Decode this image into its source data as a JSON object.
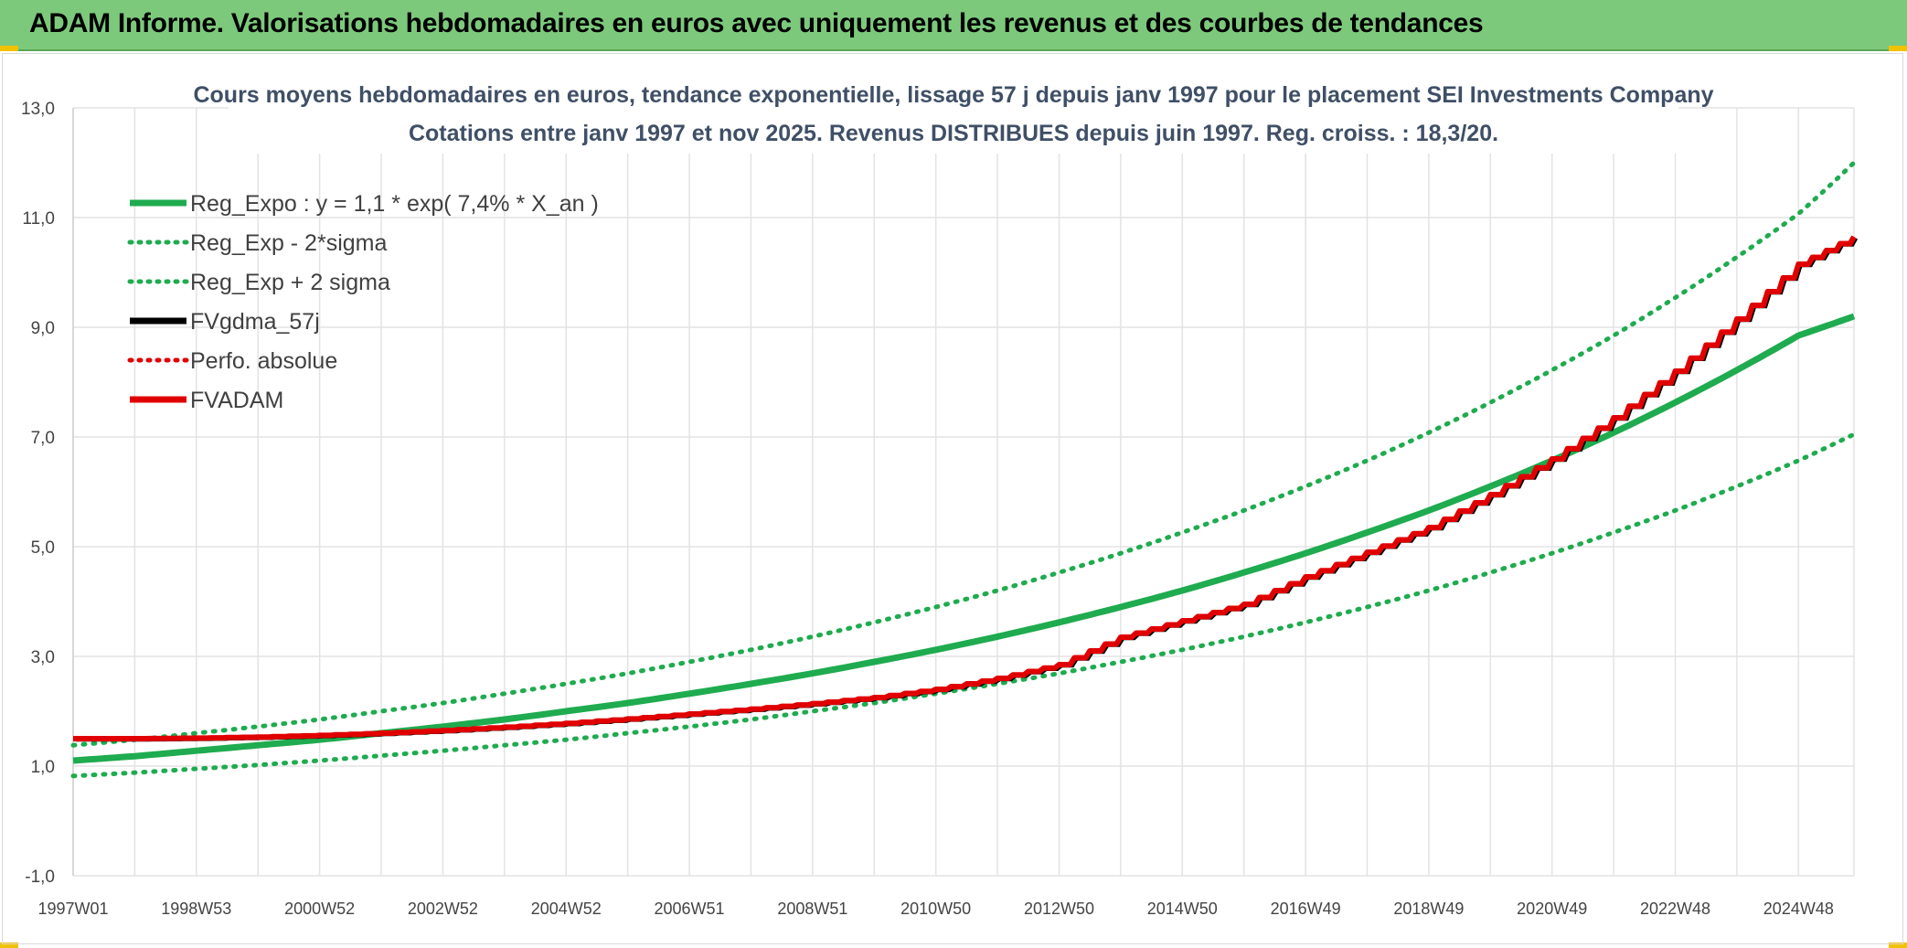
{
  "page_title": "ADAM Informe. Valorisations hebdomadaires en euros avec uniquement les revenus et des courbes de tendances",
  "colors": {
    "banner": "#7dc97c",
    "reg_expo": "#1fab4f",
    "fvgdma": "#000000",
    "fvadam": "#e00000",
    "perfo": "#e00000",
    "grid": "#e3e3e3"
  },
  "chart_data": {
    "type": "line",
    "title": [
      "Cours moyens hebdomadaires en euros, tendance exponentielle, lissage 57 j depuis janv 1997 pour le placement SEI Investments Company",
      "Cotations entre janv 1997 et nov 2025. Revenus DISTRIBUES depuis juin 1997. Reg. croiss. : 18,3/20."
    ],
    "ylim": [
      -1,
      13
    ],
    "y_ticks": [
      "-1,0",
      "1,0",
      "3,0",
      "5,0",
      "7,0",
      "9,0",
      "11,0",
      "13,0"
    ],
    "y_tick_values": [
      -1,
      1,
      3,
      5,
      7,
      9,
      11,
      13
    ],
    "xlim": [
      0,
      28.9
    ],
    "x_ticks": [
      "1997W01",
      "1998W53",
      "2000W52",
      "2002W52",
      "2004W52",
      "2006W51",
      "2008W51",
      "2010W50",
      "2012W50",
      "2014W50",
      "2016W49",
      "2018W49",
      "2020W49",
      "2022W48",
      "2024W48"
    ],
    "x_tick_values": [
      0,
      2,
      4,
      6,
      8,
      10,
      12,
      14,
      16,
      18,
      20,
      22,
      24,
      26,
      28
    ],
    "x_grid_values": [
      1,
      3,
      5,
      7,
      9,
      11,
      13,
      15,
      17,
      19,
      21,
      23,
      25,
      27
    ],
    "legend": [
      {
        "label": "Reg_Expo : y = 1,1 * exp( 7,4% *  X_an )",
        "style": "solid",
        "color": "#1fab4f"
      },
      {
        "label": "Reg_Exp - 2*sigma",
        "style": "dotted",
        "color": "#1fab4f"
      },
      {
        "label": "Reg_Exp + 2 sigma",
        "style": "dotted",
        "color": "#1fab4f"
      },
      {
        "label": "FVgdma_57j",
        "style": "solid",
        "color": "#000000"
      },
      {
        "label": "Perfo. absolue",
        "style": "dotted",
        "color": "#e00000"
      },
      {
        "label": "FVADAM",
        "style": "solid",
        "color": "#e00000"
      }
    ],
    "x_years": [
      0,
      1,
      2,
      3,
      4,
      5,
      6,
      7,
      8,
      9,
      10,
      11,
      12,
      13,
      14,
      15,
      16,
      17,
      18,
      19,
      20,
      21,
      22,
      23,
      24,
      25,
      26,
      27,
      28,
      28.9
    ],
    "series": [
      {
        "name": "Reg_Expo",
        "values": [
          1.1,
          1.18,
          1.28,
          1.38,
          1.48,
          1.6,
          1.72,
          1.85,
          2.0,
          2.15,
          2.32,
          2.5,
          2.69,
          2.9,
          3.12,
          3.36,
          3.62,
          3.9,
          4.2,
          4.53,
          4.88,
          5.26,
          5.66,
          6.1,
          6.57,
          7.08,
          7.63,
          8.22,
          8.85,
          9.2
        ]
      },
      {
        "name": "Reg_Exp - 2*sigma",
        "values": [
          0.82,
          0.88,
          0.95,
          1.02,
          1.1,
          1.19,
          1.28,
          1.38,
          1.48,
          1.6,
          1.72,
          1.85,
          2.0,
          2.15,
          2.32,
          2.5,
          2.69,
          2.9,
          3.12,
          3.36,
          3.62,
          3.9,
          4.2,
          4.53,
          4.88,
          5.26,
          5.66,
          6.1,
          6.57,
          7.05
        ]
      },
      {
        "name": "Reg_Exp + 2 sigma",
        "values": [
          1.38,
          1.48,
          1.6,
          1.72,
          1.85,
          2.0,
          2.15,
          2.32,
          2.5,
          2.69,
          2.9,
          3.12,
          3.36,
          3.62,
          3.9,
          4.2,
          4.53,
          4.88,
          5.26,
          5.66,
          6.1,
          6.57,
          7.08,
          7.63,
          8.22,
          8.85,
          9.54,
          10.28,
          11.07,
          12.0
        ]
      },
      {
        "name": "FVADAM",
        "values": [
          1.5,
          1.5,
          1.51,
          1.53,
          1.56,
          1.6,
          1.65,
          1.71,
          1.78,
          1.86,
          1.95,
          2.04,
          2.14,
          2.25,
          2.4,
          2.6,
          2.85,
          3.35,
          3.65,
          3.95,
          4.45,
          4.9,
          5.35,
          5.95,
          6.6,
          7.35,
          8.2,
          9.15,
          10.15,
          10.65
        ]
      }
    ]
  }
}
